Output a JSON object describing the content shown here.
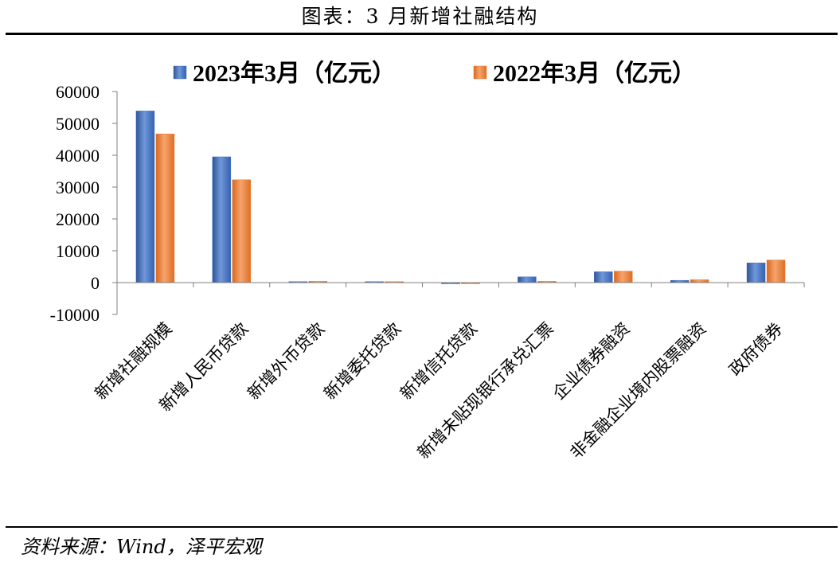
{
  "title": "图表：3 月新增社融结构",
  "source": "资料来源：Wind，泽平宏观",
  "colors": {
    "series_2023": "#4472C4",
    "series_2022": "#ED7D31",
    "axis": "#7F7F7F"
  },
  "chart_data": {
    "type": "bar",
    "title": "",
    "xlabel": "",
    "ylabel": "",
    "ylim": [
      -10000,
      60000
    ],
    "yticks": [
      60000,
      50000,
      40000,
      30000,
      20000,
      10000,
      0,
      -10000
    ],
    "grid": false,
    "legend_position": "top",
    "categories": [
      "新增社融规模",
      "新增人民币贷款",
      "新增外币贷款",
      "新增委托贷款",
      "新增信托贷款",
      "新增未贴现银行承兑汇票",
      "企业债券融资",
      "非金融企业境内股票融资",
      "政府债券"
    ],
    "series": [
      {
        "name": "2023年3月（亿元）",
        "values": [
          53900,
          39500,
          300,
          300,
          -300,
          1800,
          3400,
          700,
          6200
        ]
      },
      {
        "name": "2022年3月（亿元）",
        "values": [
          46700,
          32300,
          400,
          300,
          -300,
          400,
          3600,
          900,
          7100
        ]
      }
    ]
  }
}
